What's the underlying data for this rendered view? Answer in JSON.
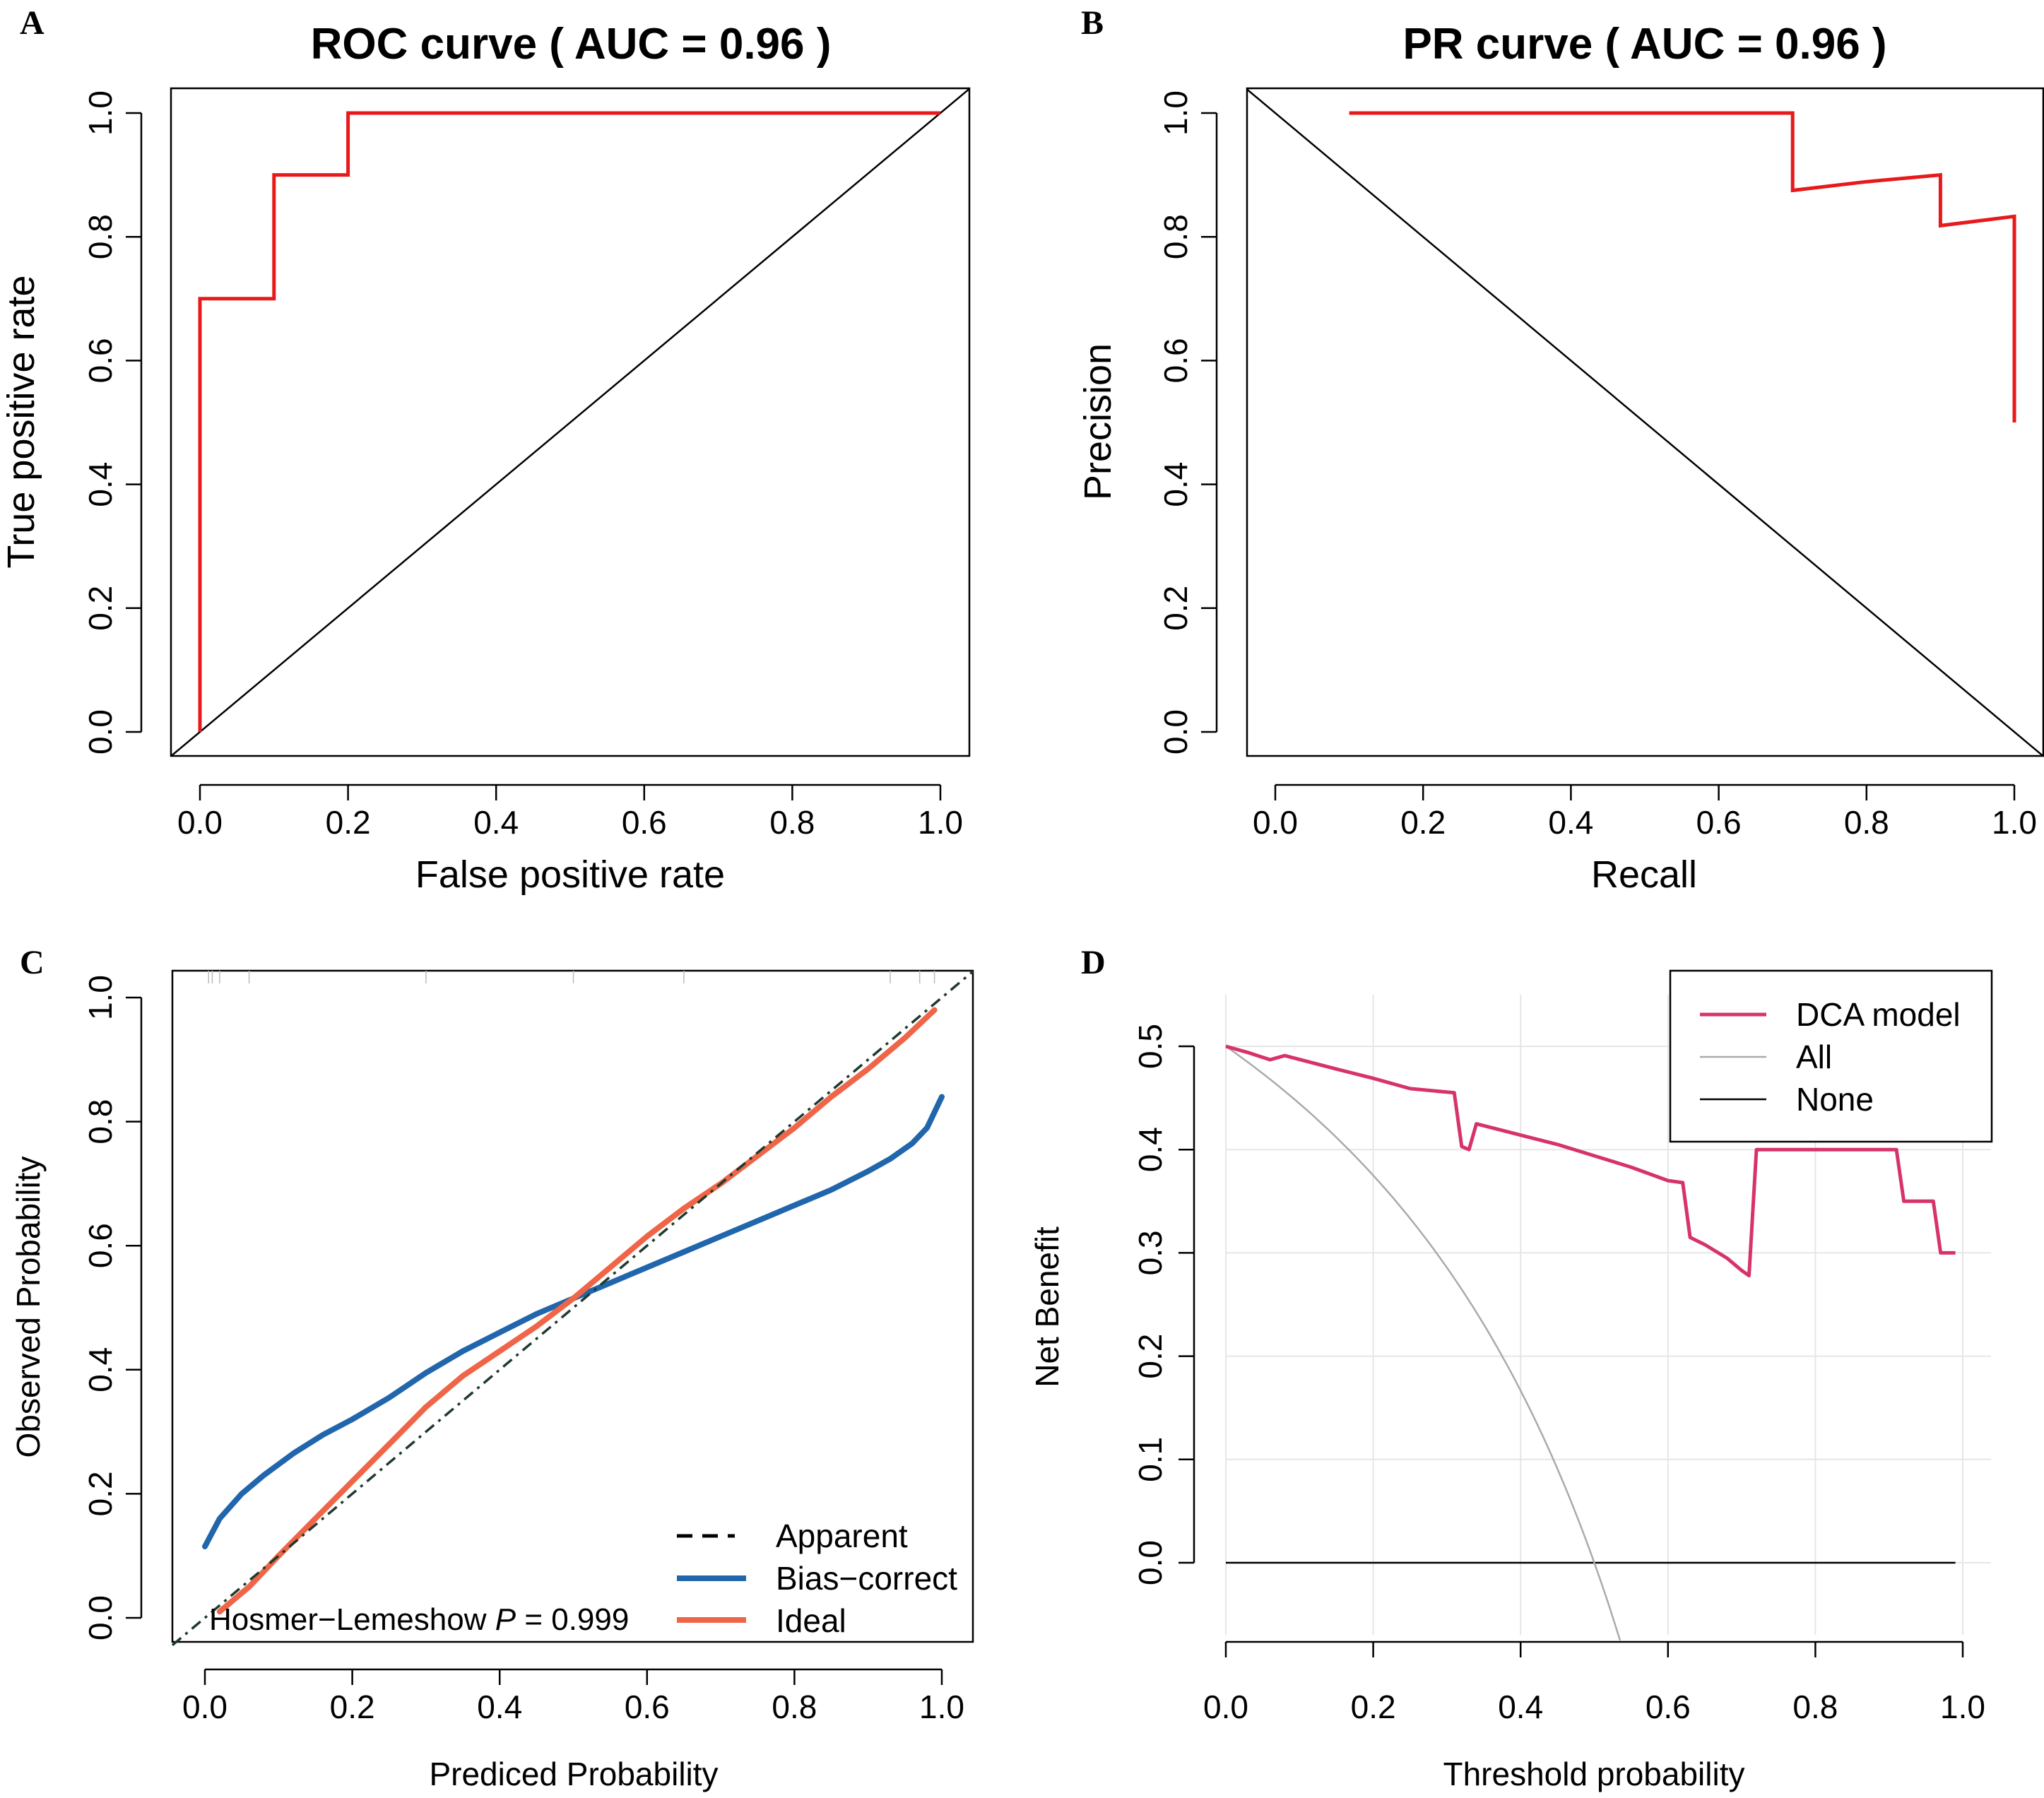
{
  "panels": {
    "a": {
      "label": "A"
    },
    "b": {
      "label": "B"
    },
    "c": {
      "label": "C"
    },
    "d": {
      "label": "D"
    }
  },
  "chart_data": [
    {
      "id": "roc",
      "type": "line",
      "title": "ROC curve ( AUC =  0.96 )",
      "xlabel": "False positive rate",
      "ylabel": "True positive rate",
      "xlim": [
        0,
        1
      ],
      "ylim": [
        0,
        1
      ],
      "xticks": [
        "0.0",
        "0.2",
        "0.4",
        "0.6",
        "0.8",
        "1.0"
      ],
      "yticks": [
        "0.0",
        "0.2",
        "0.4",
        "0.6",
        "0.8",
        "1.0"
      ],
      "series": [
        {
          "color": "#e8191b",
          "x": [
            0,
            0,
            0.1,
            0.1,
            0.2,
            0.2,
            1.0
          ],
          "y": [
            0,
            0.7,
            0.7,
            0.9,
            0.9,
            1.0,
            1.0
          ]
        }
      ],
      "reference_line": {
        "x": [
          0,
          1
        ],
        "y": [
          0,
          1
        ],
        "color": "#000000"
      }
    },
    {
      "id": "pr",
      "type": "line",
      "title": "PR curve ( AUC =  0.96 )",
      "xlabel": "Recall",
      "ylabel": "Precision",
      "xlim": [
        0,
        1
      ],
      "ylim": [
        0,
        1
      ],
      "xticks": [
        "0.0",
        "0.2",
        "0.4",
        "0.6",
        "0.8",
        "1.0"
      ],
      "yticks": [
        "0.0",
        "0.2",
        "0.4",
        "0.6",
        "0.8",
        "1.0"
      ],
      "series": [
        {
          "color": "#e8191b",
          "x": [
            0.1,
            0.7,
            0.7,
            0.8,
            0.9,
            0.9,
            1.0,
            1.0
          ],
          "y": [
            1.0,
            1.0,
            0.875,
            0.889,
            0.9,
            0.818,
            0.833,
            0.5
          ]
        }
      ],
      "reference_line": {
        "x": [
          0,
          1
        ],
        "y": [
          1,
          0
        ],
        "color": "#000000"
      }
    },
    {
      "id": "calibration",
      "type": "line",
      "title": "",
      "xlabel": "Prediced Probability",
      "ylabel": "Observed Probability",
      "xlim": [
        0,
        1
      ],
      "ylim": [
        0,
        1
      ],
      "xticks": [
        "0.0",
        "0.2",
        "0.4",
        "0.6",
        "0.8",
        "1.0"
      ],
      "yticks": [
        "0.0",
        "0.2",
        "0.4",
        "0.6",
        "0.8",
        "1.0"
      ],
      "annotation": {
        "prefix": "Hosmer−Lemeshow ",
        "stat": "P",
        "suffix": " =  0.999"
      },
      "legend": {
        "position": "bottom-right"
      },
      "series": [
        {
          "name": "Apparent",
          "color": "#000000",
          "dash": true,
          "x": [
            -0.05,
            1.05
          ],
          "y": [
            -0.05,
            1.05
          ]
        },
        {
          "name": "Bias−correct",
          "color": "#2166ac",
          "x": [
            0,
            0.02,
            0.05,
            0.08,
            0.12,
            0.16,
            0.2,
            0.25,
            0.3,
            0.35,
            0.4,
            0.45,
            0.5,
            0.55,
            0.6,
            0.65,
            0.7,
            0.75,
            0.8,
            0.85,
            0.9,
            0.93,
            0.96,
            0.98,
            1.0
          ],
          "y": [
            0.115,
            0.16,
            0.2,
            0.23,
            0.265,
            0.295,
            0.32,
            0.355,
            0.395,
            0.43,
            0.46,
            0.49,
            0.515,
            0.54,
            0.565,
            0.59,
            0.615,
            0.64,
            0.665,
            0.69,
            0.72,
            0.74,
            0.765,
            0.79,
            0.84
          ]
        },
        {
          "name": "Ideal",
          "color": "#ef6548",
          "x": [
            0.02,
            0.06,
            0.1,
            0.15,
            0.2,
            0.25,
            0.3,
            0.35,
            0.4,
            0.45,
            0.5,
            0.55,
            0.6,
            0.65,
            0.7,
            0.75,
            0.8,
            0.85,
            0.9,
            0.95,
            0.99
          ],
          "y": [
            0.01,
            0.05,
            0.1,
            0.16,
            0.22,
            0.28,
            0.34,
            0.39,
            0.43,
            0.47,
            0.515,
            0.565,
            0.615,
            0.66,
            0.7,
            0.745,
            0.79,
            0.84,
            0.885,
            0.935,
            0.98
          ]
        }
      ]
    },
    {
      "id": "dca",
      "type": "line",
      "title": "",
      "xlabel": "Threshold probability",
      "ylabel": "Net Benefit",
      "xlim": [
        0,
        1
      ],
      "ylim": [
        -0.07,
        0.55
      ],
      "xticks": [
        "0.0",
        "0.2",
        "0.4",
        "0.6",
        "0.8",
        "1.0"
      ],
      "yticks": [
        "0.0",
        "0.1",
        "0.2",
        "0.3",
        "0.4",
        "0.5"
      ],
      "grid": true,
      "legend": {
        "position": "top-right"
      },
      "series": [
        {
          "name": "DCA model",
          "color": "#d6336c",
          "x": [
            0,
            0.03,
            0.06,
            0.08,
            0.15,
            0.2,
            0.25,
            0.31,
            0.32,
            0.33,
            0.34,
            0.4,
            0.45,
            0.5,
            0.55,
            0.6,
            0.62,
            0.63,
            0.65,
            0.68,
            0.7,
            0.71,
            0.72,
            0.8,
            0.85,
            0.9,
            0.91,
            0.92,
            0.96,
            0.97,
            0.99
          ],
          "y": [
            0.5,
            0.494,
            0.487,
            0.491,
            0.478,
            0.469,
            0.459,
            0.455,
            0.403,
            0.4,
            0.425,
            0.414,
            0.405,
            0.394,
            0.383,
            0.37,
            0.368,
            0.315,
            0.308,
            0.295,
            0.283,
            0.278,
            0.4,
            0.4,
            0.4,
            0.4,
            0.4,
            0.35,
            0.35,
            0.3,
            0.3
          ]
        },
        {
          "name": "All",
          "color": "#aaaaaa",
          "formula": "all",
          "prevalence": 0.5,
          "xmax": 0.535
        },
        {
          "name": "None",
          "color": "#000000",
          "x": [
            0,
            0.99
          ],
          "y": [
            0,
            0
          ]
        }
      ]
    }
  ]
}
